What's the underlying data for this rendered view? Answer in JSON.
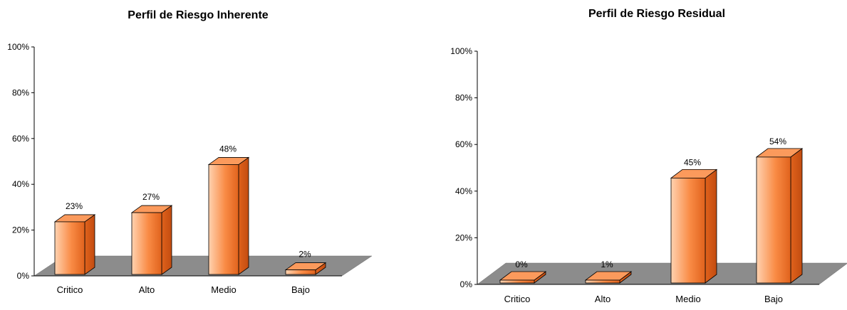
{
  "chart_data": [
    {
      "type": "bar",
      "title": "Perfil de Riesgo Inherente",
      "categories": [
        "Critico",
        "Alto",
        "Medio",
        "Bajo"
      ],
      "values": [
        23,
        27,
        48,
        2
      ],
      "value_labels": [
        "23%",
        "27%",
        "48%",
        "2%"
      ],
      "yticks": [
        "0%",
        "20%",
        "40%",
        "60%",
        "80%",
        "100%"
      ],
      "ylim": [
        0,
        100
      ],
      "grid": false,
      "style": "3d-column",
      "colors": {
        "bar": "#f57a2e",
        "floor": "#8c8c8c"
      }
    },
    {
      "type": "bar",
      "title": "Perfil de Riesgo Residual",
      "categories": [
        "Critico",
        "Alto",
        "Medio",
        "Bajo"
      ],
      "values": [
        0,
        1,
        45,
        54
      ],
      "value_labels": [
        "0%",
        "1%",
        "45%",
        "54%"
      ],
      "yticks": [
        "0%",
        "20%",
        "40%",
        "60%",
        "80%",
        "100%"
      ],
      "ylim": [
        0,
        100
      ],
      "grid": false,
      "style": "3d-column",
      "colors": {
        "bar": "#f57a2e",
        "floor": "#8c8c8c"
      }
    }
  ]
}
